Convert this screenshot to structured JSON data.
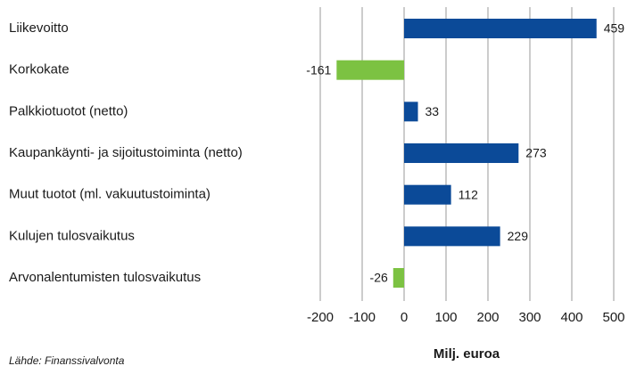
{
  "chart_data": {
    "type": "hbar",
    "categories": [
      "Liikevoitto",
      "Korkokate",
      "Palkkiotuotot (netto)",
      "Kaupankäynti- ja sijoitustoiminta (netto)",
      "Muut tuotot (ml. vakuutustoiminta)",
      "Kulujen tulosvaikutus",
      "Arvonalentumisten tulosvaikutus"
    ],
    "values": [
      459,
      -161,
      33,
      273,
      112,
      229,
      -26
    ],
    "colors": [
      "#0b4a98",
      "#7cc242",
      "#0b4a98",
      "#0b4a98",
      "#0b4a98",
      "#0b4a98",
      "#7cc242"
    ],
    "xlim": [
      -200,
      500
    ],
    "xticks": [
      -200,
      -100,
      0,
      100,
      200,
      300,
      400,
      500
    ],
    "xlabel": "Milj. euroa",
    "source": "Lähde: Finanssivalvonta",
    "grid": true
  }
}
